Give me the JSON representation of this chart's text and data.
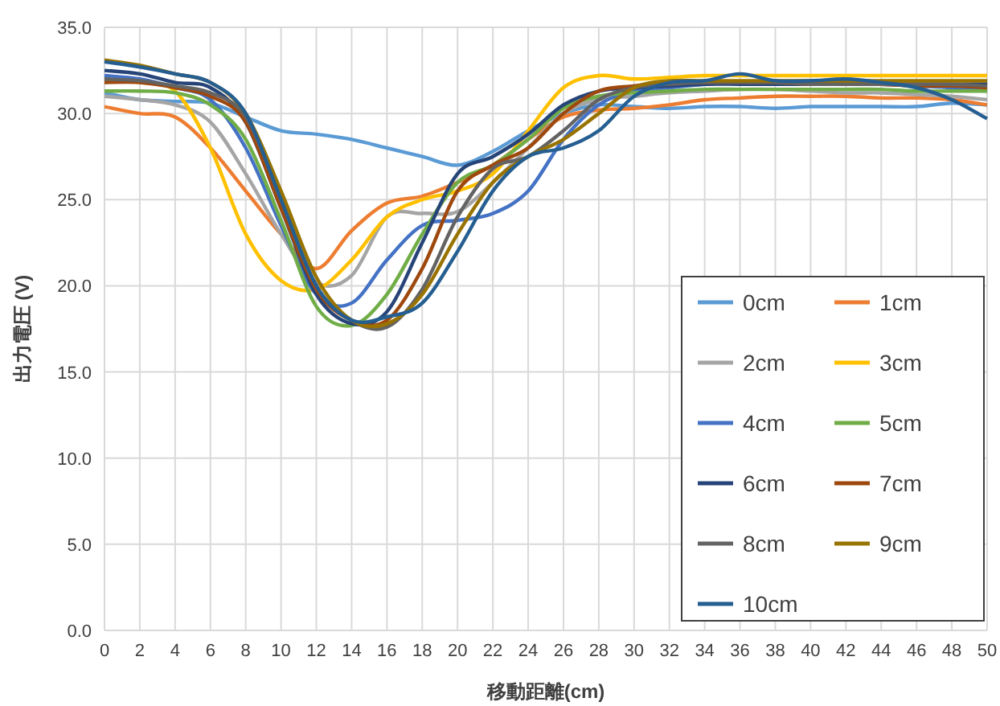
{
  "chart_data": {
    "type": "line",
    "xlabel": "移動距離(cm)",
    "ylabel": "出力電圧 (V)",
    "x": [
      0,
      2,
      4,
      6,
      8,
      10,
      12,
      14,
      16,
      18,
      20,
      22,
      24,
      26,
      28,
      30,
      32,
      34,
      36,
      38,
      40,
      42,
      44,
      46,
      48,
      50
    ],
    "xlim": [
      0,
      50
    ],
    "xticks": [
      0,
      2,
      4,
      6,
      8,
      10,
      12,
      14,
      16,
      18,
      20,
      22,
      24,
      26,
      28,
      30,
      32,
      34,
      36,
      38,
      40,
      42,
      44,
      46,
      48,
      50
    ],
    "ylim": [
      0,
      35
    ],
    "yticks": [
      {
        "value": 0,
        "label": "0.0"
      },
      {
        "value": 5,
        "label": "5.0"
      },
      {
        "value": 10,
        "label": "10.0"
      },
      {
        "value": 15,
        "label": "15.0"
      },
      {
        "value": 20,
        "label": "20.0"
      },
      {
        "value": 25,
        "label": "25.0"
      },
      {
        "value": 30,
        "label": "30.0"
      },
      {
        "value": 35,
        "label": "35.0"
      }
    ],
    "grid": true,
    "legend": "bottom right",
    "marker": "none",
    "line_style": "solid",
    "series": [
      {
        "name": "0cm",
        "color": "#5b9bd5",
        "values": [
          31.2,
          30.8,
          30.7,
          30.6,
          29.8,
          29.0,
          28.8,
          28.5,
          28.0,
          27.5,
          27.0,
          27.8,
          29.0,
          30.0,
          30.5,
          30.4,
          30.3,
          30.4,
          30.4,
          30.3,
          30.4,
          30.4,
          30.4,
          30.4,
          30.6,
          30.5
        ]
      },
      {
        "name": "1cm",
        "color": "#ed7d31",
        "values": [
          30.4,
          30.0,
          29.8,
          28.0,
          25.5,
          23.0,
          21.0,
          23.2,
          24.8,
          25.2,
          26.0,
          27.0,
          28.5,
          29.8,
          30.2,
          30.3,
          30.5,
          30.8,
          30.9,
          31.0,
          31.0,
          31.0,
          30.9,
          30.9,
          30.8,
          30.5
        ]
      },
      {
        "name": "2cm",
        "color": "#a5a5a5",
        "values": [
          31.0,
          30.8,
          30.5,
          29.5,
          26.5,
          23.0,
          20.2,
          20.6,
          24.0,
          24.2,
          24.3,
          26.0,
          28.0,
          30.0,
          30.8,
          31.0,
          31.2,
          31.3,
          31.4,
          31.4,
          31.3,
          31.2,
          31.2,
          31.1,
          31.0,
          30.8
        ]
      },
      {
        "name": "3cm",
        "color": "#ffc000",
        "values": [
          32.0,
          31.8,
          31.3,
          28.0,
          23.0,
          20.3,
          19.8,
          21.5,
          24.0,
          25.0,
          25.5,
          26.5,
          29.0,
          31.5,
          32.2,
          32.0,
          32.1,
          32.2,
          32.2,
          32.2,
          32.2,
          32.2,
          32.2,
          32.2,
          32.2,
          32.2
        ]
      },
      {
        "name": "4cm",
        "color": "#4472c4",
        "values": [
          32.2,
          32.0,
          31.5,
          30.8,
          28.0,
          23.5,
          19.5,
          19.0,
          21.5,
          23.5,
          23.8,
          24.2,
          25.5,
          28.5,
          30.5,
          31.3,
          31.5,
          31.7,
          31.8,
          31.8,
          31.8,
          31.7,
          31.7,
          31.6,
          31.5,
          31.3
        ]
      },
      {
        "name": "5cm",
        "color": "#70ad47",
        "values": [
          31.3,
          31.3,
          31.2,
          30.5,
          28.5,
          23.8,
          18.8,
          17.7,
          19.5,
          23.0,
          26.0,
          27.0,
          28.5,
          30.3,
          31.0,
          31.2,
          31.3,
          31.4,
          31.4,
          31.4,
          31.4,
          31.4,
          31.4,
          31.3,
          31.3,
          31.3
        ]
      },
      {
        "name": "6cm",
        "color": "#264478",
        "values": [
          32.5,
          32.3,
          31.8,
          31.5,
          29.5,
          24.5,
          19.5,
          17.8,
          18.5,
          22.5,
          26.5,
          27.5,
          28.8,
          30.5,
          31.3,
          31.5,
          31.6,
          31.7,
          31.7,
          31.7,
          31.7,
          31.7,
          31.7,
          31.7,
          31.7,
          31.7
        ]
      },
      {
        "name": "7cm",
        "color": "#9e480e",
        "values": [
          31.8,
          31.8,
          31.5,
          31.0,
          29.5,
          24.5,
          19.8,
          18.0,
          18.0,
          21.0,
          25.5,
          27.0,
          28.0,
          30.0,
          31.3,
          31.6,
          31.8,
          31.8,
          31.8,
          31.8,
          31.7,
          31.7,
          31.7,
          31.6,
          31.6,
          31.5
        ]
      },
      {
        "name": "8cm",
        "color": "#636363",
        "values": [
          32.0,
          31.9,
          31.6,
          31.2,
          29.8,
          25.0,
          20.0,
          18.0,
          17.6,
          19.8,
          24.0,
          26.8,
          27.5,
          29.0,
          30.8,
          31.5,
          31.7,
          31.8,
          31.8,
          31.8,
          31.7,
          31.7,
          31.7,
          31.7,
          31.7,
          31.6
        ]
      },
      {
        "name": "9cm",
        "color": "#997300",
        "values": [
          33.1,
          32.8,
          32.3,
          31.8,
          30.0,
          25.5,
          20.5,
          18.0,
          17.8,
          19.5,
          23.0,
          26.0,
          27.5,
          28.5,
          30.0,
          31.5,
          31.9,
          31.9,
          31.9,
          31.9,
          31.9,
          31.9,
          31.9,
          31.9,
          31.9,
          31.9
        ]
      },
      {
        "name": "10cm",
        "color": "#255e91",
        "values": [
          33.0,
          32.7,
          32.3,
          31.8,
          30.0,
          25.0,
          20.0,
          18.0,
          18.2,
          19.0,
          22.0,
          25.5,
          27.5,
          28.0,
          29.0,
          31.0,
          31.8,
          31.9,
          32.3,
          31.9,
          31.9,
          32.0,
          31.8,
          31.5,
          30.8,
          29.7
        ]
      }
    ]
  }
}
